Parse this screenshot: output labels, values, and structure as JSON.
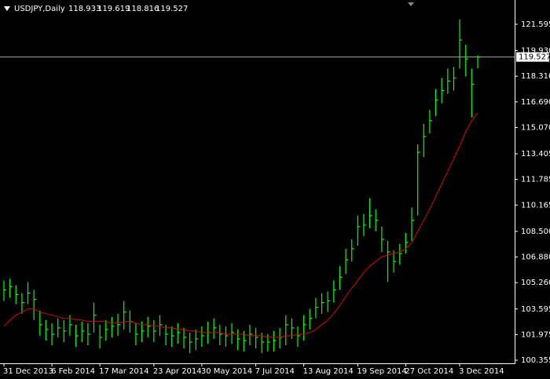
{
  "chart_data": {
    "type": "ohlc",
    "symbol": "USDJPY,Daily",
    "header_ohlc": [
      118.933,
      119.619,
      118.816,
      119.527
    ],
    "bar_color": "#00ff00",
    "ma_color": "#e00000",
    "price_line_color": "#a0a0a0",
    "categories": [
      "31 Dec 2013",
      null,
      null,
      null,
      null,
      null,
      null,
      null,
      "6 Feb 2014",
      null,
      null,
      null,
      null,
      null,
      null,
      null,
      "17 Mar 2014",
      null,
      null,
      null,
      null,
      null,
      null,
      null,
      null,
      "23 Apr 2014",
      null,
      null,
      null,
      null,
      null,
      null,
      null,
      "30 May 2014",
      null,
      null,
      null,
      null,
      null,
      null,
      null,
      null,
      "7 Jul 2014",
      null,
      null,
      null,
      null,
      null,
      null,
      null,
      "13 Aug 2014",
      null,
      null,
      null,
      null,
      null,
      null,
      null,
      null,
      "19 Sep 2014",
      null,
      null,
      null,
      null,
      null,
      null,
      null,
      "27 Oct 2014",
      null,
      null,
      null,
      null,
      null,
      null,
      null,
      null,
      "3 Dec 2014",
      null,
      null,
      null
    ],
    "high": [
      105.4,
      105.5,
      105.1,
      104.6,
      105.3,
      104.8,
      103.5,
      102.9,
      102.7,
      103.0,
      102.9,
      103.2,
      102.6,
      102.8,
      102.7,
      104.0,
      102.6,
      102.9,
      103.1,
      103.3,
      104.1,
      103.5,
      102.7,
      102.8,
      103.1,
      102.9,
      103.2,
      102.6,
      102.5,
      102.7,
      102.4,
      102.1,
      102.3,
      102.5,
      102.8,
      103.0,
      102.6,
      102.5,
      102.7,
      102.3,
      102.2,
      102.6,
      102.4,
      102.1,
      102.0,
      102.2,
      102.4,
      103.2,
      103.0,
      102.5,
      103.2,
      103.6,
      104.3,
      104.6,
      104.7,
      105.4,
      106.3,
      107.4,
      108.0,
      109.5,
      109.6,
      110.6,
      109.9,
      108.8,
      107.9,
      107.3,
      107.7,
      108.4,
      110.0,
      114.0,
      115.3,
      116.2,
      117.5,
      118.2,
      118.8,
      118.9,
      121.9,
      120.3,
      118.8,
      119.619
    ],
    "low": [
      104.1,
      104.3,
      103.9,
      103.3,
      103.9,
      102.9,
      101.9,
      101.6,
      101.3,
      101.8,
      101.5,
      101.9,
      101.2,
      101.5,
      101.3,
      102.1,
      101.1,
      101.6,
      101.8,
      101.9,
      102.3,
      102.1,
      101.3,
      101.5,
      101.8,
      101.5,
      101.9,
      101.3,
      101.2,
      101.4,
      101.1,
      100.8,
      101.0,
      101.2,
      101.4,
      101.7,
      101.3,
      101.2,
      101.4,
      101.0,
      100.9,
      101.3,
      101.1,
      100.8,
      100.9,
      100.9,
      101.1,
      101.3,
      101.7,
      101.2,
      101.6,
      102.3,
      103.0,
      103.3,
      103.4,
      104.0,
      104.8,
      105.8,
      106.6,
      107.6,
      108.2,
      108.7,
      108.5,
      107.2,
      105.3,
      105.9,
      106.4,
      107.1,
      107.9,
      109.5,
      113.2,
      114.7,
      115.8,
      116.6,
      117.2,
      117.4,
      118.8,
      118.3,
      115.7,
      118.816
    ],
    "close": [
      104.8,
      105.0,
      104.5,
      104.0,
      104.6,
      104.2,
      102.6,
      102.3,
      102.0,
      102.4,
      102.2,
      102.6,
      101.9,
      102.2,
      102.0,
      103.2,
      101.8,
      102.3,
      102.5,
      102.6,
      103.4,
      102.8,
      102.0,
      102.2,
      102.5,
      102.2,
      102.6,
      102.0,
      101.9,
      102.1,
      101.8,
      101.5,
      101.7,
      101.9,
      102.1,
      102.4,
      102.0,
      101.9,
      102.1,
      101.7,
      101.6,
      102.0,
      101.8,
      101.5,
      101.5,
      101.6,
      101.8,
      102.6,
      102.4,
      101.9,
      102.6,
      103.0,
      103.7,
      104.0,
      104.1,
      104.8,
      105.6,
      106.7,
      107.4,
      108.8,
      108.9,
      109.5,
      109.2,
      108.0,
      107.2,
      106.6,
      107.1,
      107.8,
      109.2,
      113.5,
      114.5,
      115.5,
      116.8,
      117.4,
      118.0,
      118.2,
      120.6,
      119.4,
      117.8,
      119.527
    ],
    "ma": [
      102.5,
      102.9,
      103.2,
      103.4,
      103.6,
      103.6,
      103.4,
      103.3,
      103.2,
      103.1,
      103.0,
      103.0,
      102.9,
      102.9,
      102.8,
      102.8,
      102.8,
      102.8,
      102.7,
      102.7,
      102.8,
      102.8,
      102.7,
      102.6,
      102.6,
      102.5,
      102.5,
      102.4,
      102.4,
      102.3,
      102.3,
      102.2,
      102.2,
      102.1,
      102.1,
      102.1,
      102.1,
      102.0,
      102.0,
      102.0,
      102.0,
      101.9,
      101.9,
      101.9,
      101.8,
      101.8,
      101.8,
      101.9,
      101.9,
      102.0,
      102.0,
      102.1,
      102.3,
      102.6,
      102.9,
      103.3,
      103.8,
      104.4,
      104.9,
      105.4,
      105.9,
      106.3,
      106.6,
      106.9,
      107.0,
      107.1,
      107.2,
      107.4,
      107.8,
      108.5,
      109.2,
      109.9,
      110.7,
      111.5,
      112.3,
      113.1,
      113.9,
      114.8,
      115.5,
      116.0
    ],
    "current_price": 119.527,
    "ylim": [
      100.16,
      123.13
    ],
    "yticks": [
      121.595,
      {
        "value": 119.93,
        "label": "119.930"
      },
      {
        "value": 118.31,
        "label": "118.310"
      },
      {
        "value": 116.69,
        "label": "116.690"
      },
      {
        "value": 115.07,
        "label": "115.070"
      },
      113.405,
      111.785,
      110.165,
      {
        "value": 108.5,
        "label": "108.500"
      },
      {
        "value": 106.88,
        "label": "106.880"
      },
      {
        "value": 105.26,
        "label": "105.260"
      },
      103.595,
      101.975,
      100.355
    ]
  }
}
